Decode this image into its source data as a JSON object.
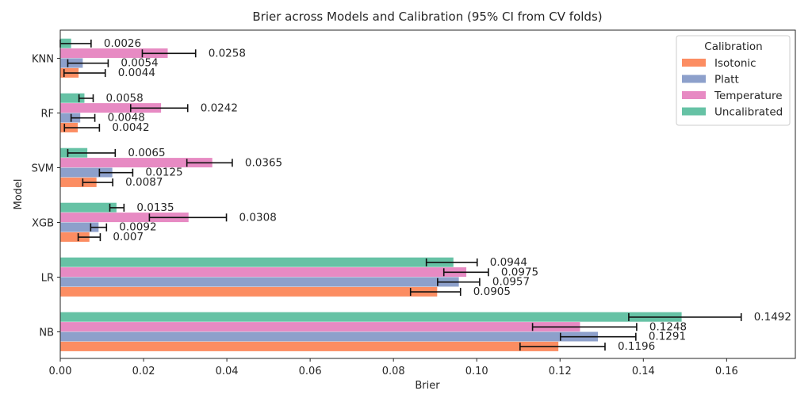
{
  "chart_data": {
    "type": "bar",
    "orientation": "horizontal",
    "title": "Brier across Models and Calibration (95% CI from CV folds)",
    "xlabel": "Brier",
    "ylabel": "Model",
    "xlim": [
      0,
      0.1765
    ],
    "xticks": [
      0.0,
      0.02,
      0.04,
      0.06,
      0.08,
      0.1,
      0.12,
      0.14,
      0.16
    ],
    "xtick_labels": [
      "0.00",
      "0.02",
      "0.04",
      "0.06",
      "0.08",
      "0.10",
      "0.12",
      "0.14",
      "0.16"
    ],
    "categories": [
      "KNN",
      "RF",
      "SVM",
      "XGB",
      "LR",
      "NB"
    ],
    "grid": false,
    "legend": {
      "title": "Calibration",
      "placement": "top-right",
      "entries": [
        "Isotonic",
        "Platt",
        "Temperature",
        "Uncalibrated"
      ]
    },
    "series": [
      {
        "name": "Uncalibrated",
        "color": "#66c2a5",
        "values": [
          0.0026,
          0.0058,
          0.0065,
          0.0135,
          0.0944,
          0.1492
        ],
        "labels": [
          "0.0026",
          "0.0058",
          "0.0065",
          "0.0135",
          "0.0944",
          "0.1492"
        ],
        "ci_low": [
          0.0,
          0.0045,
          0.0018,
          0.0119,
          0.0879,
          0.1365
        ],
        "ci_high": [
          0.0074,
          0.0079,
          0.0132,
          0.0153,
          0.1001,
          0.1635
        ]
      },
      {
        "name": "Temperature",
        "color": "#e78ac3",
        "values": [
          0.0258,
          0.0242,
          0.0365,
          0.0308,
          0.0975,
          0.1248
        ],
        "labels": [
          "0.0258",
          "0.0242",
          "0.0365",
          "0.0308",
          "0.0975",
          "0.1248"
        ],
        "ci_low": [
          0.0197,
          0.0169,
          0.0304,
          0.0214,
          0.0921,
          0.1134
        ],
        "ci_high": [
          0.0325,
          0.0306,
          0.0413,
          0.0399,
          0.1028,
          0.1384
        ]
      },
      {
        "name": "Platt",
        "color": "#8da0cb",
        "values": [
          0.0054,
          0.0048,
          0.0125,
          0.0092,
          0.0957,
          0.1291
        ],
        "labels": [
          "0.0054",
          "0.0048",
          "0.0125",
          "0.0092",
          "0.0957",
          "0.1291"
        ],
        "ci_low": [
          0.0018,
          0.0026,
          0.0094,
          0.0073,
          0.0906,
          0.1201
        ],
        "ci_high": [
          0.0115,
          0.0083,
          0.0174,
          0.0111,
          0.1007,
          0.1382
        ]
      },
      {
        "name": "Isotonic",
        "color": "#fc8d62",
        "values": [
          0.0044,
          0.0042,
          0.0087,
          0.007,
          0.0905,
          0.1196
        ],
        "labels": [
          "0.0044",
          "0.0042",
          "0.0087",
          "0.007",
          "0.0905",
          "0.1196"
        ],
        "ci_low": [
          0.0009,
          0.001,
          0.0054,
          0.0043,
          0.0841,
          0.1104
        ],
        "ci_high": [
          0.0108,
          0.0094,
          0.0126,
          0.0096,
          0.0961,
          0.1308
        ]
      }
    ]
  }
}
